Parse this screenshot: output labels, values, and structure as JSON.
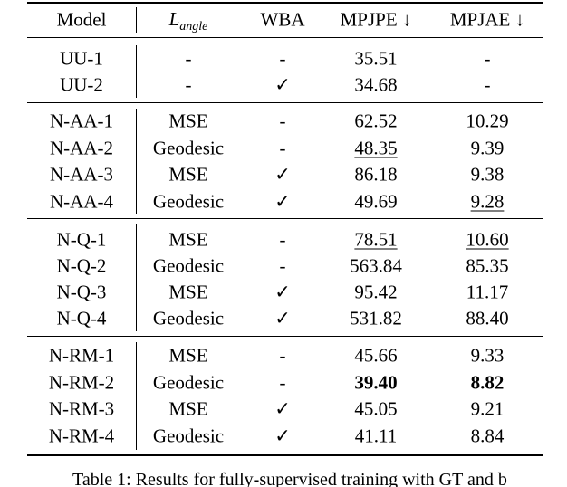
{
  "table": {
    "header": [
      "Model",
      {
        "main": "L",
        "sub": "angle"
      },
      "WBA",
      "MPJPE ↓",
      "MPJAE ↓"
    ],
    "groups": [
      [
        [
          "UU-1",
          "-",
          "-",
          "35.51",
          "-"
        ],
        [
          "UU-2",
          "-",
          "✓",
          "34.68",
          "-"
        ]
      ],
      [
        [
          "N-AA-1",
          "MSE",
          "-",
          "62.52",
          "10.29"
        ],
        [
          "N-AA-2",
          "Geodesic",
          "-",
          "48.35",
          "9.39"
        ],
        [
          "N-AA-3",
          "MSE",
          "✓",
          "86.18",
          "9.38"
        ],
        [
          "N-AA-4",
          "Geodesic",
          "✓",
          "49.69",
          "9.28"
        ]
      ],
      [
        [
          "N-Q-1",
          "MSE",
          "-",
          "78.51",
          "10.60"
        ],
        [
          "N-Q-2",
          "Geodesic",
          "-",
          "563.84",
          "85.35"
        ],
        [
          "N-Q-3",
          "MSE",
          "✓",
          "95.42",
          "11.17"
        ],
        [
          "N-Q-4",
          "Geodesic",
          "✓",
          "531.82",
          "88.40"
        ]
      ],
      [
        [
          "N-RM-1",
          "MSE",
          "-",
          "45.66",
          "9.33"
        ],
        [
          "N-RM-2",
          "Geodesic",
          "-",
          "39.40",
          "8.82"
        ],
        [
          "N-RM-3",
          "MSE",
          "✓",
          "45.05",
          "9.21"
        ],
        [
          "N-RM-4",
          "Geodesic",
          "✓",
          "41.11",
          "8.84"
        ]
      ]
    ]
  },
  "caption": "Table 1: Results for fully-supervised training with GT and b"
}
